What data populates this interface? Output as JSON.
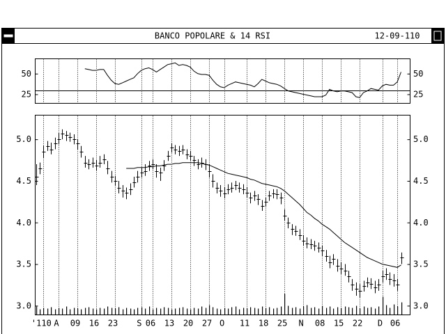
{
  "window": {
    "title": "BANCO POPOLARE & 14 RSI",
    "date": "12-09-110"
  },
  "chart_data": [
    {
      "type": "line",
      "values": [
        null,
        null,
        null,
        null,
        null,
        null,
        null,
        null,
        null,
        null,
        null,
        null,
        null,
        56,
        55,
        54,
        54,
        55,
        55,
        48,
        42,
        38,
        37,
        39,
        41,
        43,
        45,
        50,
        54,
        56,
        57,
        55,
        52,
        55,
        58,
        61,
        62,
        63,
        60,
        61,
        60,
        58,
        53,
        50,
        49,
        49,
        48,
        42,
        37,
        34,
        33,
        36,
        38,
        40,
        39,
        38,
        37,
        36,
        34,
        38,
        43,
        41,
        39,
        38,
        37,
        35,
        32,
        29,
        28,
        27,
        26,
        25,
        24,
        23,
        22,
        22,
        22,
        24,
        31,
        29,
        28,
        29,
        29,
        28,
        27,
        22,
        21,
        27,
        29,
        32,
        31,
        30,
        35,
        37,
        36,
        36,
        40,
        52
      ],
      "ylim": [
        14,
        68
      ],
      "yticks": [
        25,
        50
      ],
      "hline": 30
    },
    {
      "type": "ohlc",
      "high": [
        4.7,
        4.72,
        4.92,
        4.98,
        4.96,
        5.02,
        5.08,
        5.12,
        5.1,
        5.08,
        5.06,
        5.0,
        4.92,
        4.8,
        4.76,
        4.78,
        4.75,
        4.8,
        4.82,
        4.74,
        4.62,
        4.56,
        4.5,
        4.45,
        4.42,
        4.47,
        4.55,
        4.62,
        4.66,
        4.7,
        4.74,
        4.76,
        4.7,
        4.66,
        4.75,
        4.86,
        4.95,
        4.93,
        4.92,
        4.93,
        4.88,
        4.86,
        4.8,
        4.76,
        4.78,
        4.76,
        4.7,
        4.58,
        4.48,
        4.45,
        4.42,
        4.46,
        4.48,
        4.5,
        4.48,
        4.46,
        4.42,
        4.36,
        4.38,
        4.34,
        4.27,
        4.3,
        4.38,
        4.4,
        4.4,
        4.36,
        4.16,
        4.06,
        3.98,
        3.96,
        3.92,
        3.85,
        3.82,
        3.8,
        3.78,
        3.76,
        3.72,
        3.67,
        3.6,
        3.62,
        3.56,
        3.52,
        3.5,
        3.42,
        3.32,
        3.28,
        3.26,
        3.3,
        3.34,
        3.33,
        3.3,
        3.32,
        3.42,
        3.45,
        3.4,
        3.38,
        3.32,
        3.64
      ],
      "low": [
        4.45,
        4.58,
        4.78,
        4.86,
        4.82,
        4.88,
        4.94,
        5.0,
        4.98,
        4.97,
        4.94,
        4.88,
        4.78,
        4.66,
        4.64,
        4.66,
        4.62,
        4.66,
        4.7,
        4.58,
        4.48,
        4.44,
        4.35,
        4.3,
        4.28,
        4.33,
        4.42,
        4.48,
        4.54,
        4.56,
        4.62,
        4.64,
        4.54,
        4.5,
        4.62,
        4.74,
        4.84,
        4.82,
        4.8,
        4.82,
        4.76,
        4.74,
        4.68,
        4.64,
        4.66,
        4.63,
        4.54,
        4.42,
        4.35,
        4.31,
        4.29,
        4.34,
        4.36,
        4.39,
        4.36,
        4.34,
        4.3,
        4.23,
        4.26,
        4.21,
        4.14,
        4.19,
        4.26,
        4.29,
        4.28,
        4.22,
        4.02,
        3.93,
        3.85,
        3.84,
        3.79,
        3.72,
        3.69,
        3.68,
        3.66,
        3.64,
        3.6,
        3.53,
        3.45,
        3.49,
        3.41,
        3.38,
        3.36,
        3.28,
        3.18,
        3.12,
        3.1,
        3.17,
        3.22,
        3.2,
        3.15,
        3.18,
        3.28,
        3.31,
        3.25,
        3.23,
        3.18,
        3.5
      ],
      "close": [
        4.55,
        4.65,
        4.85,
        4.92,
        4.88,
        4.95,
        5.0,
        5.07,
        5.05,
        5.03,
        5.0,
        4.95,
        4.85,
        4.72,
        4.7,
        4.72,
        4.68,
        4.72,
        4.76,
        4.65,
        4.55,
        4.5,
        4.42,
        4.38,
        4.36,
        4.4,
        4.48,
        4.55,
        4.6,
        4.62,
        4.68,
        4.7,
        4.62,
        4.6,
        4.68,
        4.8,
        4.9,
        4.88,
        4.86,
        4.88,
        4.82,
        4.8,
        4.75,
        4.7,
        4.72,
        4.7,
        4.62,
        4.5,
        4.42,
        4.38,
        4.35,
        4.4,
        4.42,
        4.45,
        4.42,
        4.4,
        4.36,
        4.3,
        4.32,
        4.28,
        4.2,
        4.25,
        4.32,
        4.35,
        4.34,
        4.3,
        4.08,
        4.0,
        3.92,
        3.9,
        3.85,
        3.78,
        3.75,
        3.74,
        3.72,
        3.7,
        3.66,
        3.6,
        3.52,
        3.56,
        3.48,
        3.45,
        3.42,
        3.35,
        3.25,
        3.2,
        3.18,
        3.24,
        3.28,
        3.26,
        3.22,
        3.25,
        3.35,
        3.38,
        3.32,
        3.3,
        3.25,
        3.58
      ],
      "average": [
        null,
        null,
        null,
        null,
        null,
        null,
        null,
        null,
        null,
        null,
        null,
        null,
        null,
        null,
        null,
        null,
        null,
        null,
        null,
        null,
        null,
        null,
        null,
        null,
        4.65,
        4.65,
        4.65,
        4.66,
        4.66,
        4.66,
        4.67,
        4.67,
        4.68,
        4.68,
        4.69,
        4.7,
        4.7,
        4.71,
        4.71,
        4.72,
        4.72,
        4.72,
        4.72,
        4.72,
        4.71,
        4.7,
        4.69,
        4.67,
        4.65,
        4.63,
        4.61,
        4.59,
        4.58,
        4.57,
        4.56,
        4.55,
        4.54,
        4.52,
        4.51,
        4.49,
        4.47,
        4.46,
        4.45,
        4.44,
        4.43,
        4.41,
        4.38,
        4.34,
        4.3,
        4.26,
        4.22,
        4.17,
        4.12,
        4.09,
        4.05,
        4.02,
        3.98,
        3.95,
        3.92,
        3.88,
        3.84,
        3.8,
        3.76,
        3.73,
        3.7,
        3.67,
        3.64,
        3.61,
        3.58,
        3.56,
        3.54,
        3.52,
        3.5,
        3.49,
        3.48,
        3.47,
        3.46,
        3.49
      ],
      "volume": [
        12,
        8,
        10,
        9,
        11,
        8,
        10,
        9,
        12,
        8,
        10,
        9,
        8,
        10,
        11,
        9,
        8,
        10,
        9,
        12,
        10,
        9,
        11,
        8,
        10,
        9,
        8,
        10,
        11,
        9,
        12,
        8,
        10,
        9,
        11,
        10,
        8,
        9,
        10,
        11,
        9,
        8,
        10,
        9,
        12,
        10,
        14,
        11,
        9,
        8,
        10,
        9,
        11,
        12,
        8,
        10,
        9,
        11,
        10,
        9,
        12,
        10,
        11,
        9,
        10,
        12,
        30,
        13,
        10,
        11,
        9,
        12,
        14,
        10,
        11,
        9,
        13,
        10,
        12,
        9,
        11,
        10,
        12,
        11,
        10,
        13,
        9,
        12,
        10,
        11,
        9,
        12,
        26,
        14,
        10,
        15,
        12,
        18
      ],
      "vlim": [
        0,
        40
      ],
      "ylim": [
        2.89,
        5.29
      ],
      "yticks": [
        {
          "value": 3,
          "label": "3.0"
        },
        3.5,
        {
          "value": 4,
          "label": "4.0"
        },
        4.5,
        {
          "value": 5,
          "label": "5.0"
        }
      ],
      "xlim": [
        -0.2,
        99.4
      ],
      "xticks": [
        {
          "value": 2,
          "label": "'110"
        },
        {
          "value": 6,
          "label": "A"
        },
        {
          "value": 11,
          "label": "09"
        },
        {
          "value": 16,
          "label": "16"
        },
        {
          "value": 21,
          "label": "23"
        },
        {
          "value": 28,
          "label": "S"
        },
        {
          "value": 31,
          "label": "06"
        },
        {
          "value": 36,
          "label": "13"
        },
        {
          "value": 41,
          "label": "20"
        },
        {
          "value": 46,
          "label": "27"
        },
        {
          "value": 50,
          "label": "O"
        },
        {
          "value": 56,
          "label": "11"
        },
        {
          "value": 61,
          "label": "18"
        },
        {
          "value": 66,
          "label": "25"
        },
        {
          "value": 71,
          "label": "N"
        },
        {
          "value": 76,
          "label": "08"
        },
        {
          "value": 81,
          "label": "15"
        },
        {
          "value": 86,
          "label": "22"
        },
        {
          "value": 92,
          "label": "D"
        },
        {
          "value": 96,
          "label": "06"
        }
      ],
      "grid": true
    }
  ]
}
